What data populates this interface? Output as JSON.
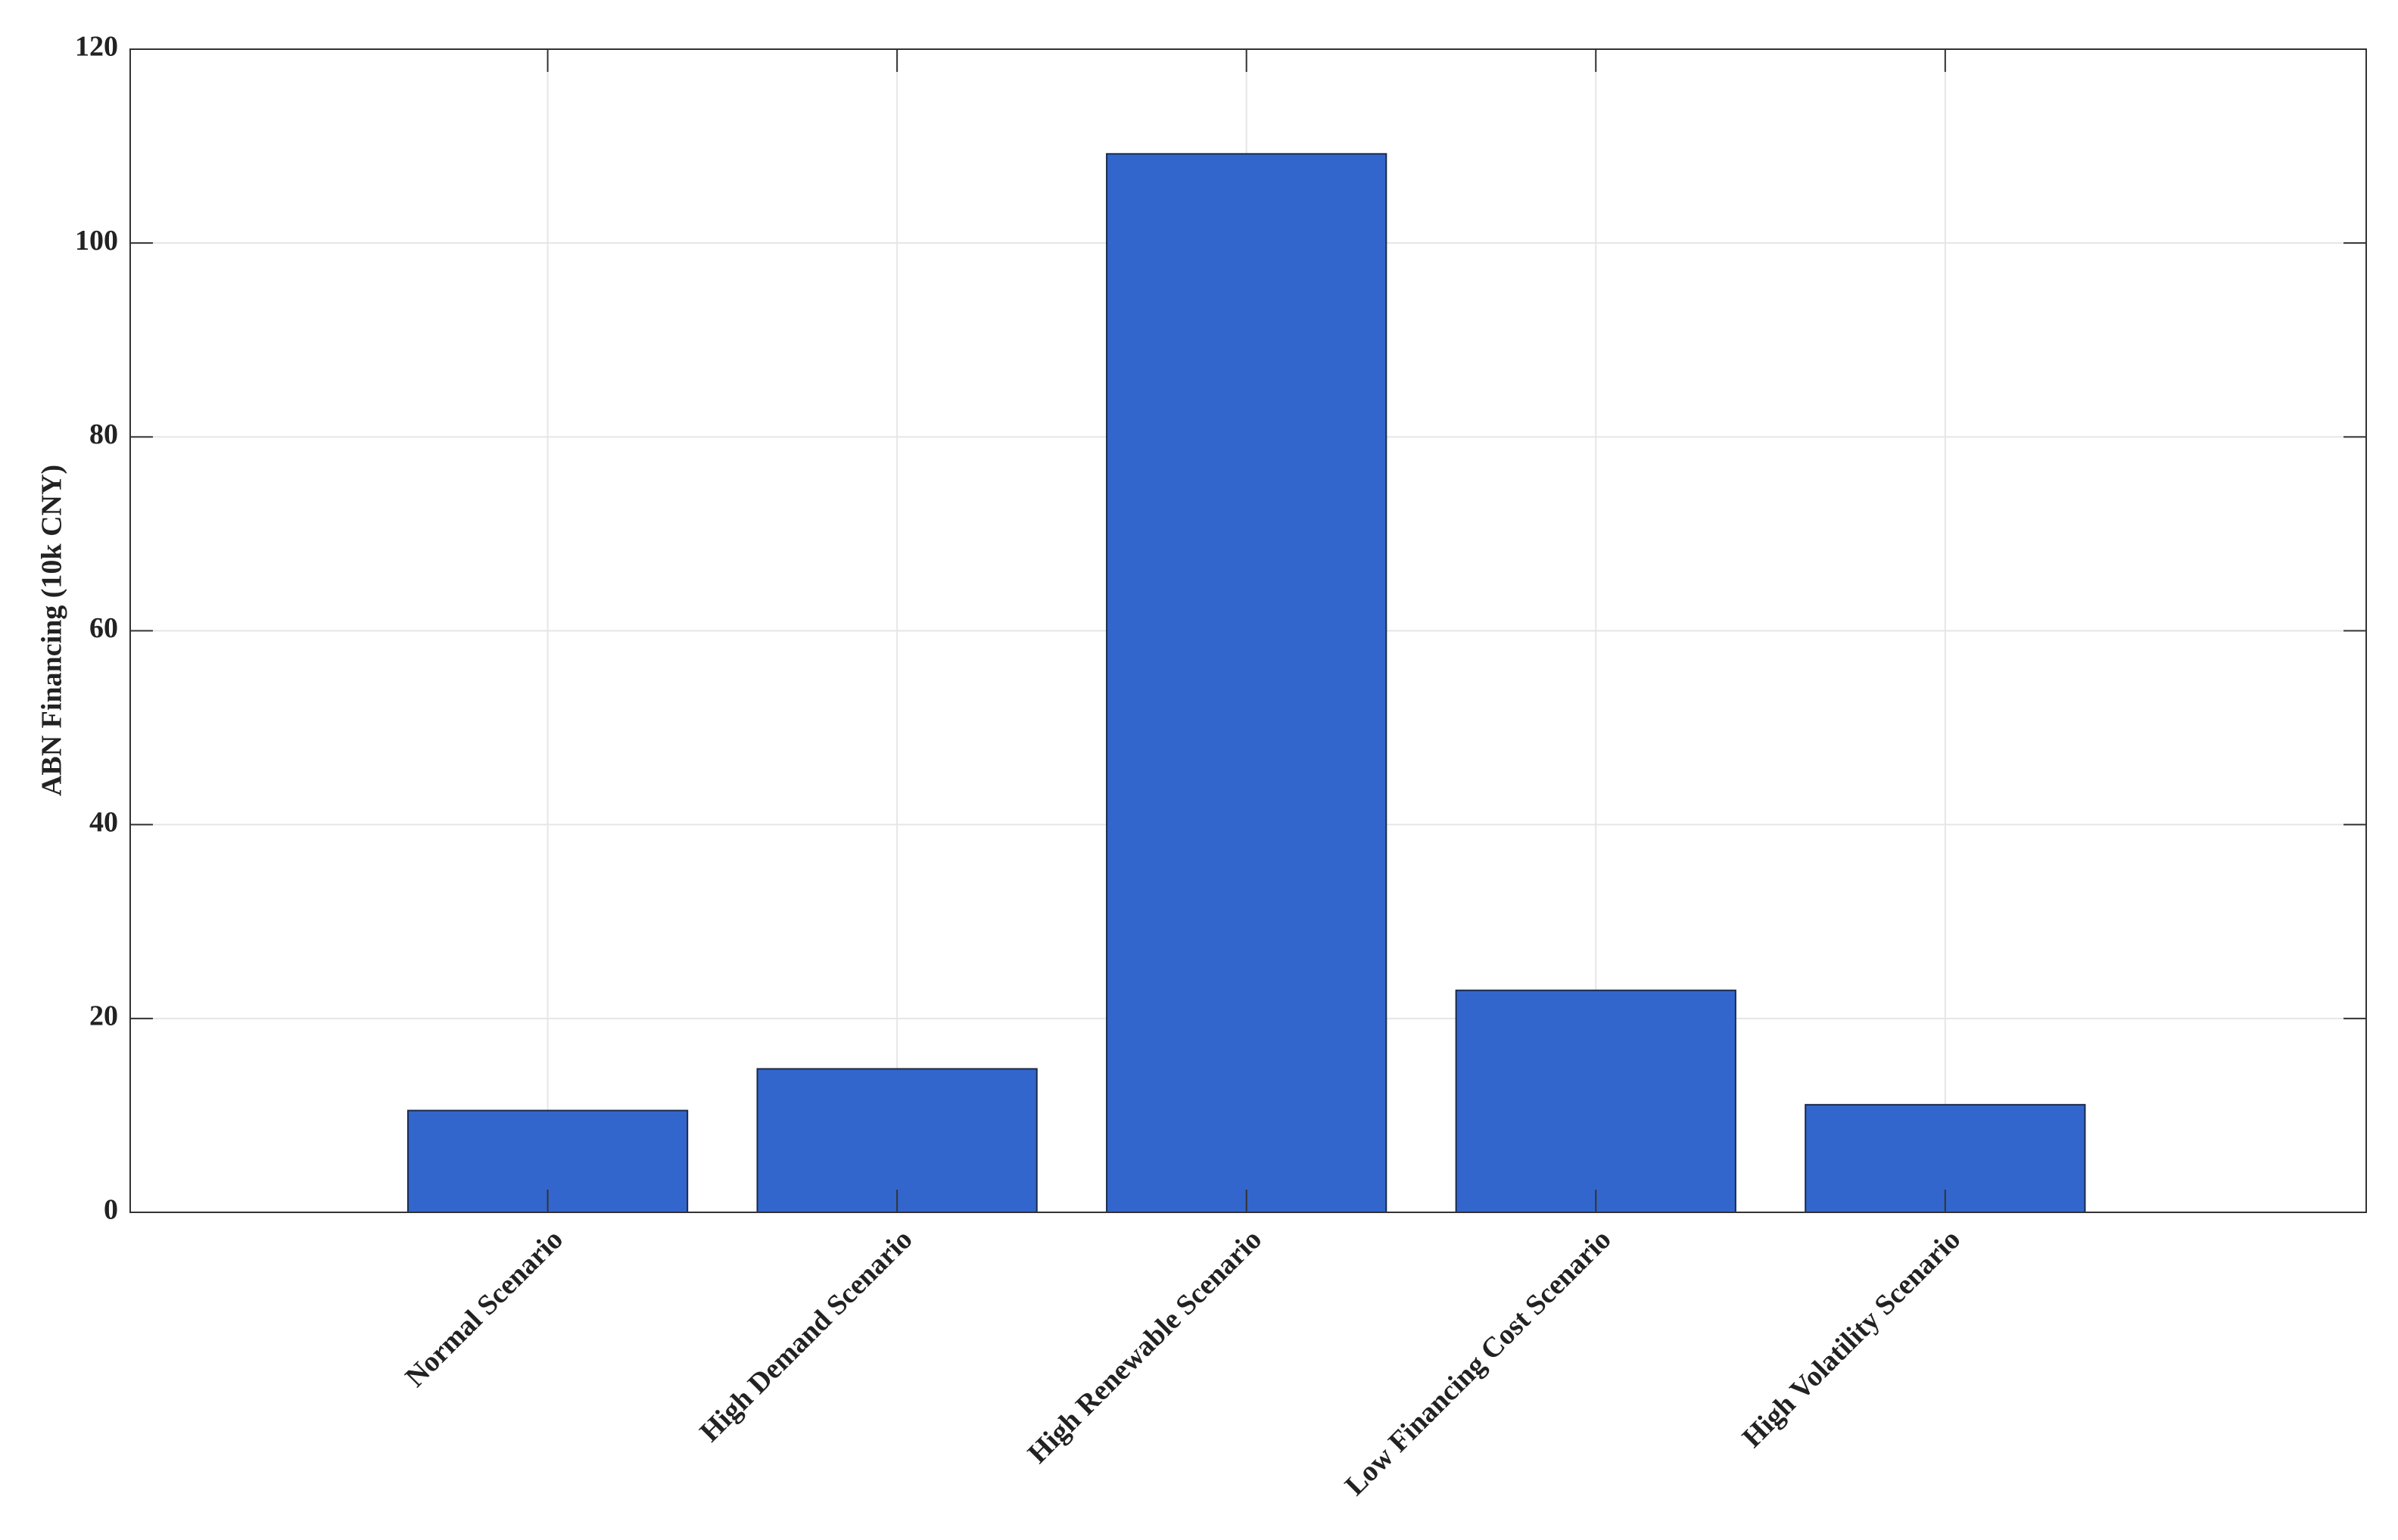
{
  "chart_data": {
    "type": "bar",
    "ylabel": "ABN Financing (10k CNY)",
    "categories": [
      "Normal Scenario",
      "High Demand Scenario",
      "High Renewable Scenario",
      "Low Financing Cost Scenario",
      "High Volatility Scenario"
    ],
    "values": [
      10.5,
      14.8,
      109.2,
      22.9,
      11.1
    ],
    "color": "#3366cc",
    "ylim": [
      0,
      120
    ],
    "yticks": [
      0,
      20,
      40,
      60,
      80,
      100,
      120
    ],
    "grid": true
  }
}
